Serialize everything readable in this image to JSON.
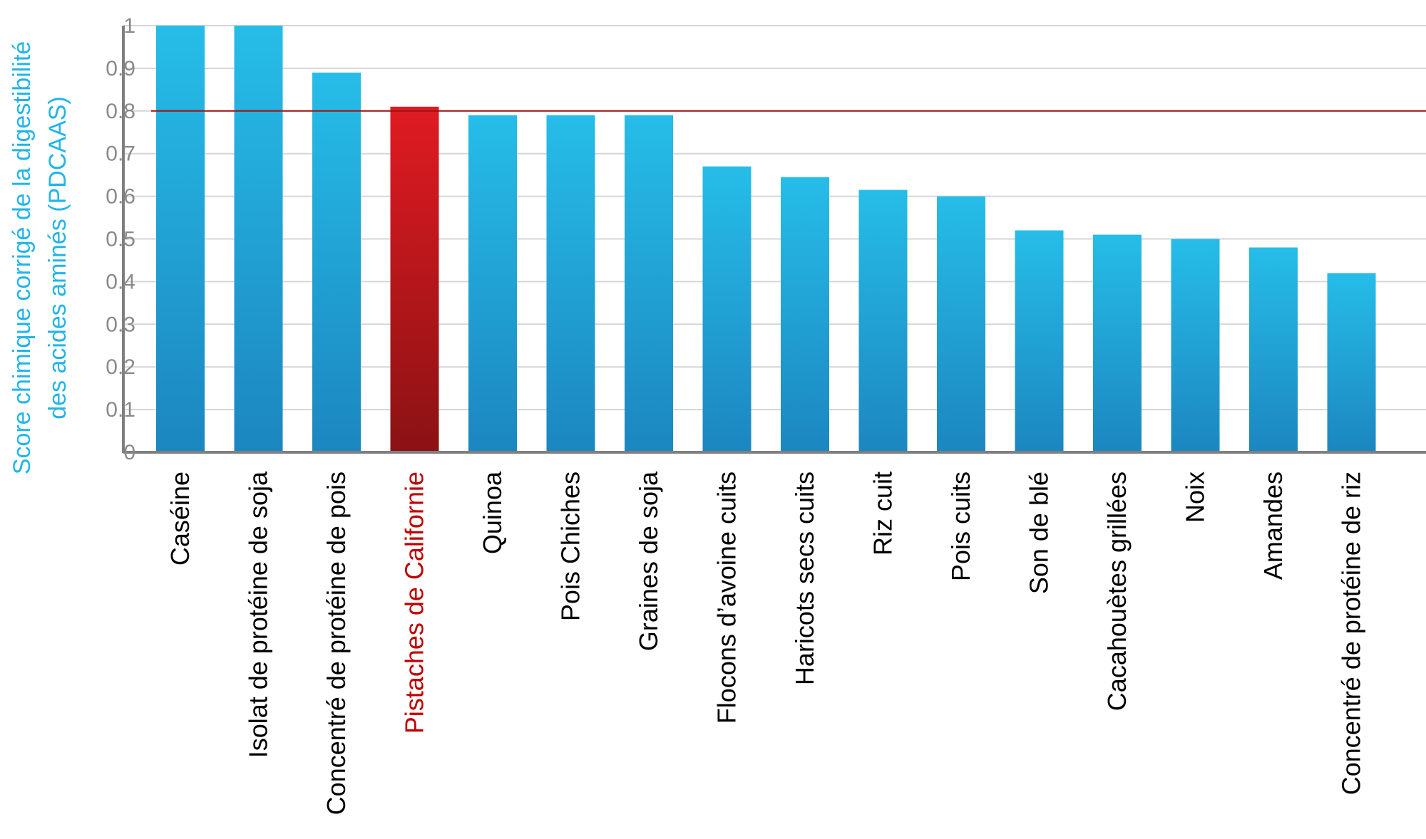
{
  "chart_data": {
    "type": "bar",
    "title": "",
    "xlabel": "",
    "ylabel_line1": "Score chimique corrigé de la digestibilité",
    "ylabel_line2": "des acides aminés (PDCAAS)",
    "ylim": [
      0,
      1
    ],
    "yticks": [
      "0",
      "0.1",
      "0.2",
      "0.3",
      "0.4",
      "0.5",
      "0.6",
      "0.7",
      "0.8",
      "0.9",
      "1"
    ],
    "grid": true,
    "reference_line": 0.8,
    "categories": [
      "Caséine",
      "Isolat de protéine de soja",
      "Concentré de protéine de pois",
      "Pistaches de Californie",
      "Quinoa",
      "Pois Chiches",
      "Graines de soja",
      "Flocons d’avoine cuits",
      "Haricots secs cuits",
      "Riz cuit",
      "Pois cuits",
      "Son de blé",
      "Cacahouètes grillées",
      "Noix",
      "Amandes",
      "Concentré de protéine de riz"
    ],
    "values": [
      1.0,
      1.0,
      0.89,
      0.81,
      0.79,
      0.79,
      0.79,
      0.67,
      0.645,
      0.615,
      0.6,
      0.52,
      0.51,
      0.5,
      0.48,
      0.42
    ],
    "highlight_index": 3,
    "colors": {
      "bar_top": "#26bde8",
      "bar_bottom": "#1c86c0",
      "highlight_top": "#e01b22",
      "highlight_bottom": "#8a1214",
      "reference_line": "#a01010",
      "highlight_label": "#c00000",
      "ylabel": "#22b5e8"
    }
  }
}
